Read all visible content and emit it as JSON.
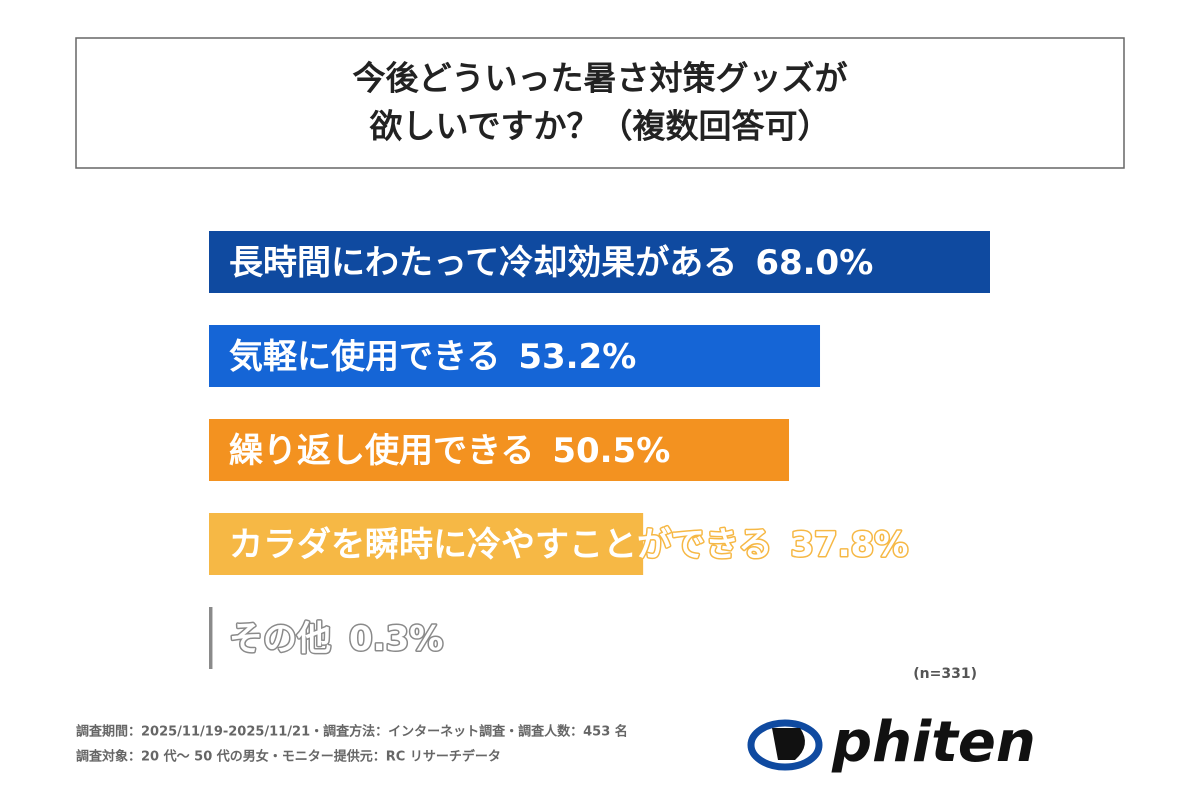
{
  "chart_data": {
    "type": "bar",
    "orientation": "horizontal",
    "title_lines": [
      "今後どういった暑さ対策グッズが",
      "欲しいですか？（複数回答可）"
    ],
    "categories": [
      "長時間にわたって冷却効果がある",
      "気軽に使用できる",
      "繰り返し使用できる",
      "カラダを瞬時に冷やすことができる",
      "その他"
    ],
    "values": [
      68.0,
      53.2,
      50.5,
      37.8,
      0.3
    ],
    "value_labels": [
      "68.0%",
      "53.2%",
      "50.5%",
      "37.8%",
      "0.3%"
    ],
    "colors": [
      "#0f4aa0",
      "#1565d6",
      "#f39220",
      "#f6b845",
      "#8a8a8a"
    ],
    "note": "(n=331)"
  },
  "footer": {
    "lines": [
      "調査期間：2025/11/19-2025/11/21・調査方法：インターネット調査・調査人数：453 名",
      "調査対象：20 代〜 50 代の男女・モニター提供元：RC リサーチデータ"
    ],
    "logo": "phiten"
  }
}
